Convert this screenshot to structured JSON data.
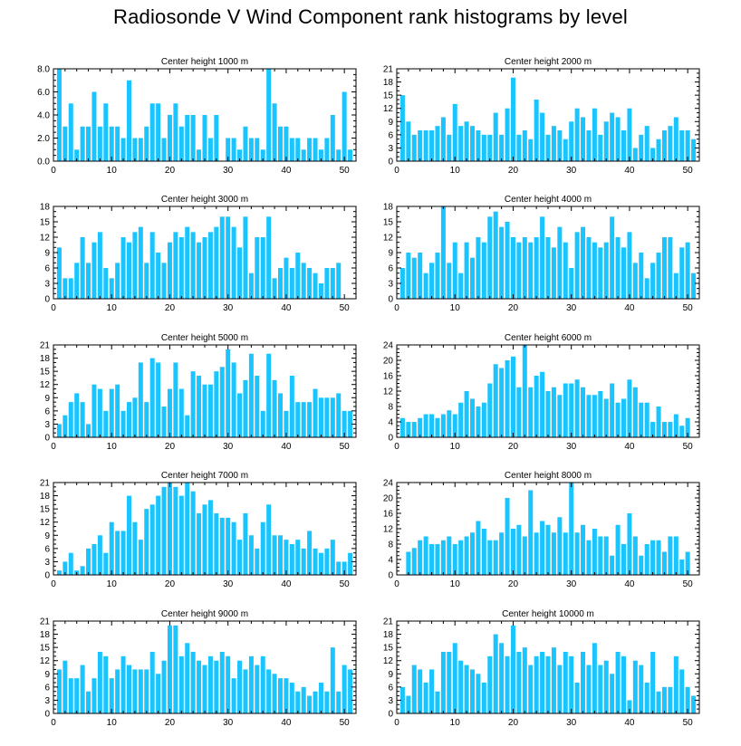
{
  "page_title": "Radiosonde V Wind Component rank histograms by level",
  "style": {
    "bar_color": "#1AC5FF",
    "frame_color": "#000000",
    "background": "#FFFFFF"
  },
  "chart_data": [
    {
      "type": "bar",
      "title": "Center height 1000 m",
      "xlabel": "",
      "ylabel": "",
      "xlim": [
        0,
        52
      ],
      "ylim": [
        0,
        8
      ],
      "xticks": [
        0,
        10,
        20,
        30,
        40,
        50
      ],
      "xtick_labels": [
        "0",
        "10",
        "20",
        "30",
        "40",
        "50"
      ],
      "yticks": [
        0,
        2,
        4,
        6,
        8
      ],
      "ytick_labels": [
        "0.0",
        "2.0",
        "4.0",
        "6.0",
        "8.0"
      ],
      "x": [
        1,
        2,
        3,
        4,
        5,
        6,
        7,
        8,
        9,
        10,
        11,
        12,
        13,
        14,
        15,
        16,
        17,
        18,
        19,
        20,
        21,
        22,
        23,
        24,
        25,
        26,
        27,
        28,
        29,
        30,
        31,
        32,
        33,
        34,
        35,
        36,
        37,
        38,
        39,
        40,
        41,
        42,
        43,
        44,
        45,
        46,
        47,
        48,
        49,
        50,
        51
      ],
      "values": [
        8,
        3,
        5,
        1,
        3,
        3,
        6,
        3,
        5,
        3,
        3,
        2,
        7,
        2,
        2,
        3,
        5,
        5,
        2,
        4,
        5,
        3,
        4,
        4,
        1,
        4,
        2,
        4,
        0,
        2,
        2,
        1,
        3,
        2,
        2,
        1,
        8,
        5,
        3,
        3,
        2,
        2,
        1,
        2,
        2,
        1,
        2,
        4,
        1,
        6,
        1
      ]
    },
    {
      "type": "bar",
      "title": "Center height 2000 m",
      "xlabel": "",
      "ylabel": "",
      "xlim": [
        0,
        52
      ],
      "ylim": [
        0,
        21
      ],
      "xticks": [
        0,
        10,
        20,
        30,
        40,
        50
      ],
      "xtick_labels": [
        "0",
        "10",
        "20",
        "30",
        "40",
        "50"
      ],
      "yticks": [
        0,
        3,
        6,
        9,
        12,
        15,
        18,
        21
      ],
      "ytick_labels": [
        "0",
        "3",
        "6",
        "9",
        "12",
        "15",
        "18",
        "21"
      ],
      "x": [
        1,
        2,
        3,
        4,
        5,
        6,
        7,
        8,
        9,
        10,
        11,
        12,
        13,
        14,
        15,
        16,
        17,
        18,
        19,
        20,
        21,
        22,
        23,
        24,
        25,
        26,
        27,
        28,
        29,
        30,
        31,
        32,
        33,
        34,
        35,
        36,
        37,
        38,
        39,
        40,
        41,
        42,
        43,
        44,
        45,
        46,
        47,
        48,
        49,
        50,
        51
      ],
      "values": [
        15,
        9,
        6,
        7,
        7,
        7,
        8,
        10,
        6,
        13,
        8,
        9,
        8,
        7,
        6,
        6,
        11,
        6,
        12,
        19,
        6,
        7,
        5,
        14,
        11,
        6,
        8,
        7,
        5,
        9,
        12,
        10,
        7,
        12,
        6,
        9,
        11,
        10,
        7,
        12,
        3,
        6,
        8,
        3,
        5,
        7,
        8,
        10,
        7,
        7,
        5
      ]
    },
    {
      "type": "bar",
      "title": "Center height 3000 m",
      "xlabel": "",
      "ylabel": "",
      "xlim": [
        0,
        52
      ],
      "ylim": [
        0,
        18
      ],
      "xticks": [
        0,
        10,
        20,
        30,
        40,
        50
      ],
      "xtick_labels": [
        "0",
        "10",
        "20",
        "30",
        "40",
        "50"
      ],
      "yticks": [
        0,
        3,
        6,
        9,
        12,
        15,
        18
      ],
      "ytick_labels": [
        "0",
        "3",
        "6",
        "9",
        "12",
        "15",
        "18"
      ],
      "x": [
        1,
        2,
        3,
        4,
        5,
        6,
        7,
        8,
        9,
        10,
        11,
        12,
        13,
        14,
        15,
        16,
        17,
        18,
        19,
        20,
        21,
        22,
        23,
        24,
        25,
        26,
        27,
        28,
        29,
        30,
        31,
        32,
        33,
        34,
        35,
        36,
        37,
        38,
        39,
        40,
        41,
        42,
        43,
        44,
        45,
        46,
        47,
        48,
        49,
        50,
        51
      ],
      "values": [
        10,
        4,
        4,
        7,
        12,
        7,
        11,
        13,
        6,
        4,
        7,
        12,
        11,
        13,
        14,
        7,
        13,
        9,
        7,
        11,
        13,
        12,
        14,
        13,
        11,
        12,
        13,
        14,
        16,
        16,
        14,
        10,
        16,
        5,
        12,
        12,
        16,
        4,
        6,
        8,
        6,
        9,
        7,
        6,
        5,
        3,
        6,
        6,
        7,
        0,
        0
      ]
    },
    {
      "type": "bar",
      "title": "Center height 4000 m",
      "xlabel": "",
      "ylabel": "",
      "xlim": [
        0,
        52
      ],
      "ylim": [
        0,
        18
      ],
      "xticks": [
        0,
        10,
        20,
        30,
        40,
        50
      ],
      "xtick_labels": [
        "0",
        "10",
        "20",
        "30",
        "40",
        "50"
      ],
      "yticks": [
        0,
        3,
        6,
        9,
        12,
        15,
        18
      ],
      "ytick_labels": [
        "0",
        "3",
        "6",
        "9",
        "12",
        "15",
        "18"
      ],
      "x": [
        1,
        2,
        3,
        4,
        5,
        6,
        7,
        8,
        9,
        10,
        11,
        12,
        13,
        14,
        15,
        16,
        17,
        18,
        19,
        20,
        21,
        22,
        23,
        24,
        25,
        26,
        27,
        28,
        29,
        30,
        31,
        32,
        33,
        34,
        35,
        36,
        37,
        38,
        39,
        40,
        41,
        42,
        43,
        44,
        45,
        46,
        47,
        48,
        49,
        50,
        51
      ],
      "values": [
        6,
        9,
        8,
        9,
        5,
        7,
        9,
        18,
        7,
        11,
        5,
        11,
        8,
        12,
        11,
        16,
        17,
        14,
        15,
        12,
        11,
        12,
        11,
        12,
        16,
        12,
        10,
        14,
        11,
        6,
        13,
        14,
        12,
        11,
        10,
        11,
        16,
        12,
        10,
        13,
        7,
        9,
        4,
        7,
        9,
        12,
        12,
        5,
        10,
        11,
        5
      ]
    },
    {
      "type": "bar",
      "title": "Center height 5000 m",
      "xlabel": "",
      "ylabel": "",
      "xlim": [
        0,
        52
      ],
      "ylim": [
        0,
        21
      ],
      "xticks": [
        0,
        10,
        20,
        30,
        40,
        50
      ],
      "xtick_labels": [
        "0",
        "10",
        "20",
        "30",
        "40",
        "50"
      ],
      "yticks": [
        0,
        3,
        6,
        9,
        12,
        15,
        18,
        21
      ],
      "ytick_labels": [
        "0",
        "3",
        "6",
        "9",
        "12",
        "15",
        "18",
        "21"
      ],
      "x": [
        1,
        2,
        3,
        4,
        5,
        6,
        7,
        8,
        9,
        10,
        11,
        12,
        13,
        14,
        15,
        16,
        17,
        18,
        19,
        20,
        21,
        22,
        23,
        24,
        25,
        26,
        27,
        28,
        29,
        30,
        31,
        32,
        33,
        34,
        35,
        36,
        37,
        38,
        39,
        40,
        41,
        42,
        43,
        44,
        45,
        46,
        47,
        48,
        49,
        50,
        51
      ],
      "values": [
        3,
        5,
        8,
        10,
        8,
        3,
        12,
        11,
        6,
        11,
        12,
        6,
        8,
        9,
        17,
        8,
        18,
        17,
        7,
        11,
        17,
        11,
        5,
        15,
        14,
        12,
        12,
        15,
        16,
        20,
        17,
        10,
        13,
        19,
        14,
        6,
        19,
        13,
        10,
        6,
        14,
        8,
        8,
        8,
        11,
        9,
        9,
        9,
        10,
        6,
        6
      ]
    },
    {
      "type": "bar",
      "title": "Center height 6000 m",
      "xlabel": "",
      "ylabel": "",
      "xlim": [
        0,
        52
      ],
      "ylim": [
        0,
        24
      ],
      "xticks": [
        0,
        10,
        20,
        30,
        40,
        50
      ],
      "xtick_labels": [
        "0",
        "10",
        "20",
        "30",
        "40",
        "50"
      ],
      "yticks": [
        0,
        4,
        8,
        12,
        16,
        20,
        24
      ],
      "ytick_labels": [
        "0",
        "4",
        "8",
        "12",
        "16",
        "20",
        "24"
      ],
      "x": [
        1,
        2,
        3,
        4,
        5,
        6,
        7,
        8,
        9,
        10,
        11,
        12,
        13,
        14,
        15,
        16,
        17,
        18,
        19,
        20,
        21,
        22,
        23,
        24,
        25,
        26,
        27,
        28,
        29,
        30,
        31,
        32,
        33,
        34,
        35,
        36,
        37,
        38,
        39,
        40,
        41,
        42,
        43,
        44,
        45,
        46,
        47,
        48,
        49,
        50,
        51
      ],
      "values": [
        5,
        4,
        4,
        5,
        6,
        6,
        5,
        6,
        7,
        6,
        9,
        12,
        10,
        8,
        9,
        14,
        19,
        18,
        20,
        21,
        13,
        24,
        13,
        16,
        17,
        12,
        13,
        11,
        14,
        14,
        15,
        13,
        11,
        11,
        12,
        10,
        14,
        9,
        10,
        15,
        13,
        9,
        9,
        4,
        8,
        4,
        4,
        6,
        3,
        5,
        0
      ]
    },
    {
      "type": "bar",
      "title": "Center height 7000 m",
      "xlabel": "",
      "ylabel": "",
      "xlim": [
        0,
        52
      ],
      "ylim": [
        0,
        21
      ],
      "xticks": [
        0,
        10,
        20,
        30,
        40,
        50
      ],
      "xtick_labels": [
        "0",
        "10",
        "20",
        "30",
        "40",
        "50"
      ],
      "yticks": [
        0,
        3,
        6,
        9,
        12,
        15,
        18,
        21
      ],
      "ytick_labels": [
        "0",
        "3",
        "6",
        "9",
        "12",
        "15",
        "18",
        "21"
      ],
      "x": [
        1,
        2,
        3,
        4,
        5,
        6,
        7,
        8,
        9,
        10,
        11,
        12,
        13,
        14,
        15,
        16,
        17,
        18,
        19,
        20,
        21,
        22,
        23,
        24,
        25,
        26,
        27,
        28,
        29,
        30,
        31,
        32,
        33,
        34,
        35,
        36,
        37,
        38,
        39,
        40,
        41,
        42,
        43,
        44,
        45,
        46,
        47,
        48,
        49,
        50,
        51
      ],
      "values": [
        1,
        3,
        5,
        1,
        2,
        6,
        7,
        9,
        5,
        12,
        10,
        10,
        18,
        12,
        8,
        15,
        16,
        18,
        20,
        21,
        20,
        18,
        21,
        19,
        14,
        16,
        17,
        14,
        13,
        13,
        12,
        8,
        14,
        9,
        6,
        12,
        16,
        9,
        9,
        8,
        7,
        8,
        6,
        10,
        6,
        5,
        6,
        8,
        3,
        3,
        5
      ]
    },
    {
      "type": "bar",
      "title": "Center height 8000 m",
      "xlabel": "",
      "ylabel": "",
      "xlim": [
        0,
        52
      ],
      "ylim": [
        0,
        24
      ],
      "xticks": [
        0,
        10,
        20,
        30,
        40,
        50
      ],
      "xtick_labels": [
        "0",
        "10",
        "20",
        "30",
        "40",
        "50"
      ],
      "yticks": [
        0,
        4,
        8,
        12,
        16,
        20,
        24
      ],
      "ytick_labels": [
        "0",
        "4",
        "8",
        "12",
        "16",
        "20",
        "24"
      ],
      "x": [
        1,
        2,
        3,
        4,
        5,
        6,
        7,
        8,
        9,
        10,
        11,
        12,
        13,
        14,
        15,
        16,
        17,
        18,
        19,
        20,
        21,
        22,
        23,
        24,
        25,
        26,
        27,
        28,
        29,
        30,
        31,
        32,
        33,
        34,
        35,
        36,
        37,
        38,
        39,
        40,
        41,
        42,
        43,
        44,
        45,
        46,
        47,
        48,
        49,
        50,
        51
      ],
      "values": [
        0,
        6,
        7,
        9,
        10,
        8,
        8,
        9,
        10,
        8,
        9,
        10,
        11,
        14,
        12,
        9,
        9,
        11,
        20,
        12,
        13,
        10,
        22,
        11,
        14,
        13,
        11,
        15,
        11,
        24,
        11,
        13,
        9,
        12,
        10,
        10,
        5,
        13,
        8,
        16,
        10,
        5,
        8,
        9,
        9,
        6,
        10,
        10,
        4,
        6,
        0
      ]
    },
    {
      "type": "bar",
      "title": "Center height 9000 m",
      "xlabel": "",
      "ylabel": "",
      "xlim": [
        0,
        52
      ],
      "ylim": [
        0,
        21
      ],
      "xticks": [
        0,
        10,
        20,
        30,
        40,
        50
      ],
      "xtick_labels": [
        "0",
        "10",
        "20",
        "30",
        "40",
        "50"
      ],
      "yticks": [
        0,
        3,
        6,
        9,
        12,
        15,
        18,
        21
      ],
      "ytick_labels": [
        "0",
        "3",
        "6",
        "9",
        "12",
        "15",
        "18",
        "21"
      ],
      "x": [
        1,
        2,
        3,
        4,
        5,
        6,
        7,
        8,
        9,
        10,
        11,
        12,
        13,
        14,
        15,
        16,
        17,
        18,
        19,
        20,
        21,
        22,
        23,
        24,
        25,
        26,
        27,
        28,
        29,
        30,
        31,
        32,
        33,
        34,
        35,
        36,
        37,
        38,
        39,
        40,
        41,
        42,
        43,
        44,
        45,
        46,
        47,
        48,
        49,
        50,
        51
      ],
      "values": [
        10,
        12,
        8,
        8,
        11,
        5,
        8,
        14,
        13,
        8,
        10,
        13,
        11,
        10,
        10,
        10,
        14,
        9,
        12,
        20,
        20,
        13,
        16,
        14,
        12,
        11,
        13,
        12,
        14,
        13,
        8,
        12,
        10,
        13,
        11,
        13,
        10,
        9,
        8,
        8,
        7,
        5,
        6,
        4,
        5,
        7,
        5,
        15,
        5,
        11,
        10
      ]
    },
    {
      "type": "bar",
      "title": "Center height 10000 m",
      "xlabel": "",
      "ylabel": "",
      "xlim": [
        0,
        52
      ],
      "ylim": [
        0,
        21
      ],
      "xticks": [
        0,
        10,
        20,
        30,
        40,
        50
      ],
      "xtick_labels": [
        "0",
        "10",
        "20",
        "30",
        "40",
        "50"
      ],
      "yticks": [
        0,
        3,
        6,
        9,
        12,
        15,
        18,
        21
      ],
      "ytick_labels": [
        "0",
        "3",
        "6",
        "9",
        "12",
        "15",
        "18",
        "21"
      ],
      "x": [
        1,
        2,
        3,
        4,
        5,
        6,
        7,
        8,
        9,
        10,
        11,
        12,
        13,
        14,
        15,
        16,
        17,
        18,
        19,
        20,
        21,
        22,
        23,
        24,
        25,
        26,
        27,
        28,
        29,
        30,
        31,
        32,
        33,
        34,
        35,
        36,
        37,
        38,
        39,
        40,
        41,
        42,
        43,
        44,
        45,
        46,
        47,
        48,
        49,
        50,
        51
      ],
      "values": [
        6,
        4,
        11,
        10,
        7,
        10,
        5,
        14,
        14,
        16,
        12,
        11,
        10,
        9,
        7,
        13,
        18,
        16,
        13,
        20,
        14,
        15,
        11,
        13,
        14,
        13,
        15,
        11,
        14,
        13,
        7,
        14,
        11,
        16,
        11,
        12,
        9,
        14,
        13,
        3,
        12,
        11,
        7,
        14,
        5,
        6,
        6,
        13,
        10,
        6,
        4
      ]
    }
  ]
}
